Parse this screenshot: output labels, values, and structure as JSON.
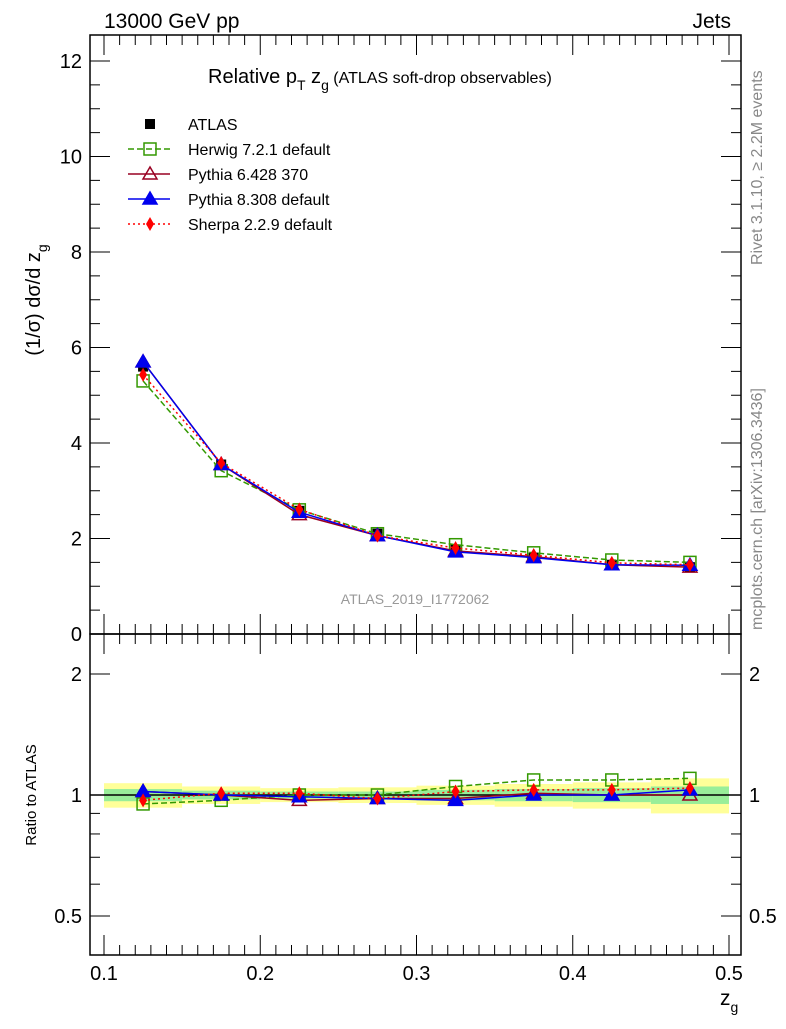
{
  "header": {
    "left": "13000 GeV pp",
    "right": "Jets"
  },
  "side": {
    "rivet": "Rivet 3.1.10, ≥ 2.2M events",
    "mcplots": "mcplots.cern.ch [arXiv:1306.3436]"
  },
  "watermark": "ATLAS_2019_I1772062",
  "chart_data": [
    {
      "type": "line",
      "title": "Relative pT zg (ATLAS soft-drop observables)",
      "title_parts": {
        "a": "Relative p",
        "b": "T",
        "c": " z",
        "d": "g",
        "e": " (ATLAS soft-drop observables)"
      },
      "ylabel": "(1/σ) dσ/d z",
      "ylabel_sub": "g",
      "xlim": [
        0.09,
        0.51
      ],
      "ylim": [
        0,
        12.5
      ],
      "yticks": [
        "0",
        "2",
        "4",
        "6",
        "8",
        "10",
        "12"
      ],
      "x": [
        0.125,
        0.175,
        0.225,
        0.275,
        0.325,
        0.375,
        0.425,
        0.475
      ],
      "series": [
        {
          "name": "ATLAS",
          "color": "#000000",
          "values": [
            5.6,
            3.55,
            2.58,
            2.1,
            1.77,
            1.6,
            1.45,
            1.4
          ]
        },
        {
          "name": "Herwig 7.2.1 default",
          "color": "#339900",
          "values": [
            5.3,
            3.42,
            2.6,
            2.1,
            1.87,
            1.7,
            1.55,
            1.5
          ]
        },
        {
          "name": "Pythia 6.428 370",
          "color": "#990022",
          "values": [
            5.7,
            3.55,
            2.5,
            2.06,
            1.74,
            1.62,
            1.45,
            1.4
          ]
        },
        {
          "name": "Pythia 8.308 default",
          "color": "#0000ee",
          "values": [
            5.7,
            3.55,
            2.55,
            2.06,
            1.72,
            1.6,
            1.45,
            1.44
          ]
        },
        {
          "name": "Sherpa 2.2.9 default",
          "color": "#ff0000",
          "values": [
            5.43,
            3.58,
            2.61,
            2.06,
            1.8,
            1.65,
            1.49,
            1.45
          ]
        }
      ]
    },
    {
      "type": "line",
      "ylabel": "Ratio to ATLAS",
      "xlabel": "z",
      "xlabel_sub": "g",
      "yscale": "log",
      "ylim": [
        0.4,
        2.5
      ],
      "yticks": [
        "0.5",
        "1",
        "2"
      ],
      "xticks": [
        "0.1",
        "0.2",
        "0.3",
        "0.4",
        "0.5"
      ],
      "x": [
        0.125,
        0.175,
        0.225,
        0.275,
        0.325,
        0.375,
        0.425,
        0.475
      ],
      "band_inner": [
        0.035,
        0.025,
        0.02,
        0.02,
        0.03,
        0.035,
        0.04,
        0.05
      ],
      "band_outer": [
        0.07,
        0.05,
        0.04,
        0.045,
        0.055,
        0.065,
        0.075,
        0.1
      ],
      "series": [
        {
          "name": "Herwig 7.2.1 default",
          "values": [
            0.95,
            0.97,
            1.0,
            1.0,
            1.05,
            1.09,
            1.09,
            1.1
          ]
        },
        {
          "name": "Pythia 6.428 370",
          "values": [
            1.02,
            1.0,
            0.97,
            0.98,
            0.98,
            1.01,
            1.0,
            1.0
          ]
        },
        {
          "name": "Pythia 8.308 default",
          "values": [
            1.02,
            1.0,
            0.99,
            0.98,
            0.97,
            1.0,
            1.0,
            1.03
          ]
        },
        {
          "name": "Sherpa 2.2.9 default",
          "values": [
            0.97,
            1.01,
            1.01,
            0.98,
            1.02,
            1.03,
            1.03,
            1.04
          ]
        }
      ]
    }
  ]
}
